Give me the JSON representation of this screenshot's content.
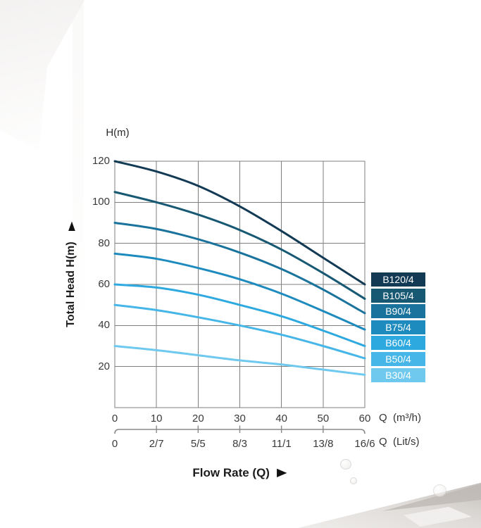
{
  "icons": {
    "up_arrow": "▲",
    "right_arrow": "▶"
  },
  "chart_data": {
    "type": "line",
    "y_unit_label": "H(m)",
    "ylabel": "Total Head H(m)",
    "xlabel": "Flow Rate (Q)",
    "xlim": [
      0,
      60
    ],
    "ylim": [
      0,
      120
    ],
    "grid": true,
    "grid_color": "#7f7f7f",
    "secondary_axis_color": "#8a8a8a",
    "y_ticks": [
      120,
      100,
      80,
      60,
      40,
      20
    ],
    "x": [
      0,
      10,
      20,
      30,
      40,
      50,
      60
    ],
    "x_axis_units": [
      {
        "label": "Q  (m³/h)",
        "ticks": [
          "0",
          "10",
          "20",
          "30",
          "40",
          "50",
          "60"
        ]
      },
      {
        "label": "Q  (Lit/s)",
        "ticks": [
          "0",
          "2/7",
          "5/5",
          "8/3",
          "11/1",
          "13/8",
          "16/6"
        ]
      }
    ],
    "legend_position": "right",
    "series": [
      {
        "name": "B120/4",
        "color": "#133a54",
        "values": [
          120,
          115,
          108,
          98,
          86,
          73,
          60
        ]
      },
      {
        "name": "B105/4",
        "color": "#175873",
        "values": [
          105,
          100,
          94,
          86.5,
          77,
          65.5,
          53
        ]
      },
      {
        "name": "B90/4",
        "color": "#1a739c",
        "values": [
          90,
          87,
          82,
          75.5,
          67.5,
          57.5,
          46
        ]
      },
      {
        "name": "B75/4",
        "color": "#1e8bbe",
        "values": [
          75,
          72.5,
          68,
          62.5,
          55.5,
          47,
          38
        ]
      },
      {
        "name": "B60/4",
        "color": "#2ea9e0",
        "values": [
          60,
          58.5,
          55,
          50,
          44.5,
          37.5,
          30
        ]
      },
      {
        "name": "B50/4",
        "color": "#46b6e8",
        "values": [
          50,
          47.5,
          44,
          40,
          35.5,
          30,
          24
        ]
      },
      {
        "name": "B30/4",
        "color": "#6fc9ef",
        "values": [
          30,
          28,
          25.5,
          23,
          21,
          18.5,
          16
        ]
      }
    ]
  }
}
